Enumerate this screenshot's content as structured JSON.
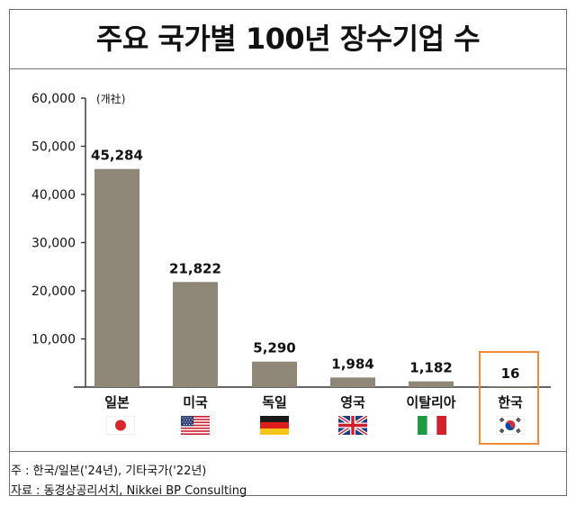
{
  "title": "주요 국가별 100년 장수기업 수",
  "notes": [
    "주 : 한국/일본('24년), 기타국가('22년)",
    "자료 : 동경상공리서치, Nikkei BP Consulting"
  ],
  "colors": {
    "bar": "#8f8778",
    "highlight": "#f08a3a",
    "axis": "#333333"
  },
  "chart_data": {
    "type": "bar",
    "title": "주요 국가별 100년 장수기업 수",
    "unit_label": "(개社)",
    "categories": [
      "일본",
      "미국",
      "독일",
      "영국",
      "이탈리아",
      "한국"
    ],
    "values": [
      45284,
      21822,
      5290,
      1984,
      1182,
      16
    ],
    "value_labels": [
      "45,284",
      "21,822",
      "5,290",
      "1,984",
      "1,182",
      "16"
    ],
    "flags": [
      "japan-flag",
      "usa-flag",
      "germany-flag",
      "uk-flag",
      "italy-flag",
      "korea-flag"
    ],
    "yticks": [
      10000,
      20000,
      30000,
      40000,
      50000,
      60000
    ],
    "ytick_labels": [
      "10,000",
      "20,000",
      "30,000",
      "40,000",
      "50,000",
      "60,000"
    ],
    "ylim": [
      0,
      60000
    ],
    "highlighted_category": "한국",
    "grid": false
  }
}
